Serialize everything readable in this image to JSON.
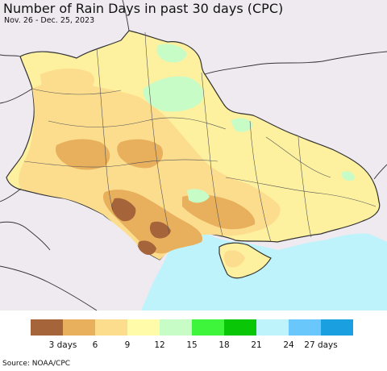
{
  "header": {
    "title": "Number of Rain Days in past 30 days (CPC)",
    "subtitle": "Nov. 26 - Dec. 25, 2023"
  },
  "map": {
    "background_color": "#efeaf0",
    "sea_color": "#bff3fb",
    "border_color": "#333333"
  },
  "legend": {
    "colors": [
      "#a6643a",
      "#e8b05c",
      "#fcdd8e",
      "#fffba8",
      "#c8fcc6",
      "#3ef53c",
      "#09c707",
      "#bff3fb",
      "#69c7fb",
      "#1a9fe1"
    ],
    "labels": [
      "3 days",
      "6",
      "9",
      "12",
      "15",
      "18",
      "21",
      "24",
      "27 days"
    ]
  },
  "footer": {
    "source": "Source: NOAA/CPC"
  }
}
